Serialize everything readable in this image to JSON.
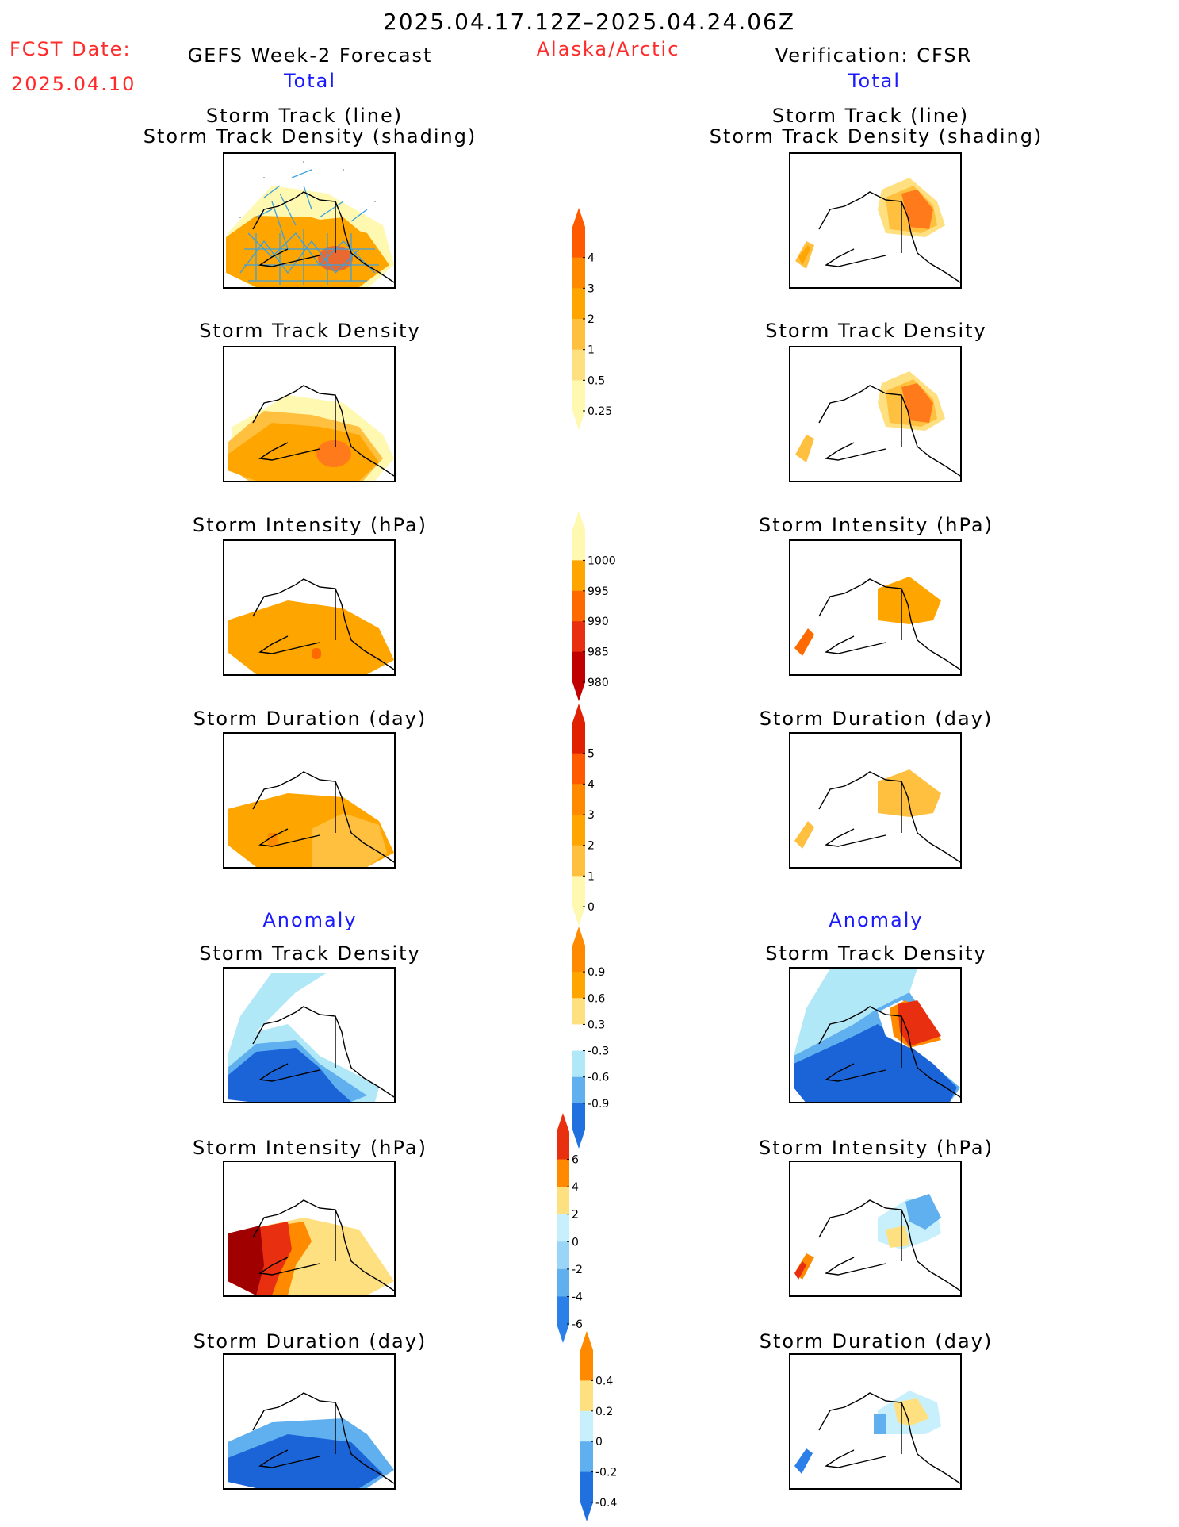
{
  "header": {
    "date_range": "2025.04.17.12Z–2025.04.24.06Z",
    "region": "Alaska/Arctic",
    "fcst_label": "FCST Date:",
    "fcst_date": "2025.04.10",
    "left_title": "GEFS Week-2 Forecast",
    "right_title": "Verification: CFSR",
    "left_section": "Total",
    "right_section": "Total",
    "anomaly_left": "Anomaly",
    "anomaly_right": "Anomaly"
  },
  "panels": {
    "track_line": "Storm Track (line)",
    "track_shading": "Storm Track Density (shading)",
    "density": "Storm Track Density",
    "intensity": "Storm Intensity (hPa)",
    "duration": "Storm Duration (day)"
  },
  "colorbars": {
    "density": {
      "labels": [
        "4",
        "3",
        "2",
        "1",
        "0.5",
        "0.25"
      ],
      "colors": [
        "#ff5a00",
        "#ff8a00",
        "#ffa500",
        "#ffc040",
        "#ffe080",
        "#fff8b0"
      ]
    },
    "intensity": {
      "labels": [
        "1000",
        "995",
        "990",
        "985",
        "980"
      ],
      "colors": [
        "#fff8b0",
        "#ffa500",
        "#ff6a00",
        "#e83010",
        "#c00000"
      ]
    },
    "duration": {
      "labels": [
        "5",
        "4",
        "3",
        "2",
        "1",
        "0"
      ],
      "colors": [
        "#e02000",
        "#ff5a00",
        "#ff8a00",
        "#ffa500",
        "#ffc040",
        "#fff8b0"
      ]
    },
    "anom_density": {
      "labels": [
        "0.9",
        "0.6",
        "0.3",
        "-0.3",
        "-0.6",
        "-0.9"
      ],
      "colors": [
        "#ff8a00",
        "#ffa500",
        "#ffe080",
        "#ffffff",
        "#b0e8f8",
        "#60b0f0",
        "#2070e0"
      ]
    },
    "anom_intensity": {
      "labels": [
        "6",
        "4",
        "2",
        "0",
        "-2",
        "-4",
        "-6"
      ],
      "colors": [
        "#e83010",
        "#ff8a00",
        "#ffe080",
        "#c8f0fc",
        "#9ad4f6",
        "#60b0f0",
        "#2a80e8"
      ]
    },
    "anom_duration": {
      "labels": [
        "0.4",
        "0.2",
        "0",
        "-0.2",
        "-0.4"
      ],
      "colors": [
        "#ff8a00",
        "#ffe080",
        "#c8f0fc",
        "#60b0f0",
        "#2070e0"
      ]
    }
  },
  "colors": {
    "title_red": "#ff2a2a",
    "section_blue": "#1a1aff"
  }
}
